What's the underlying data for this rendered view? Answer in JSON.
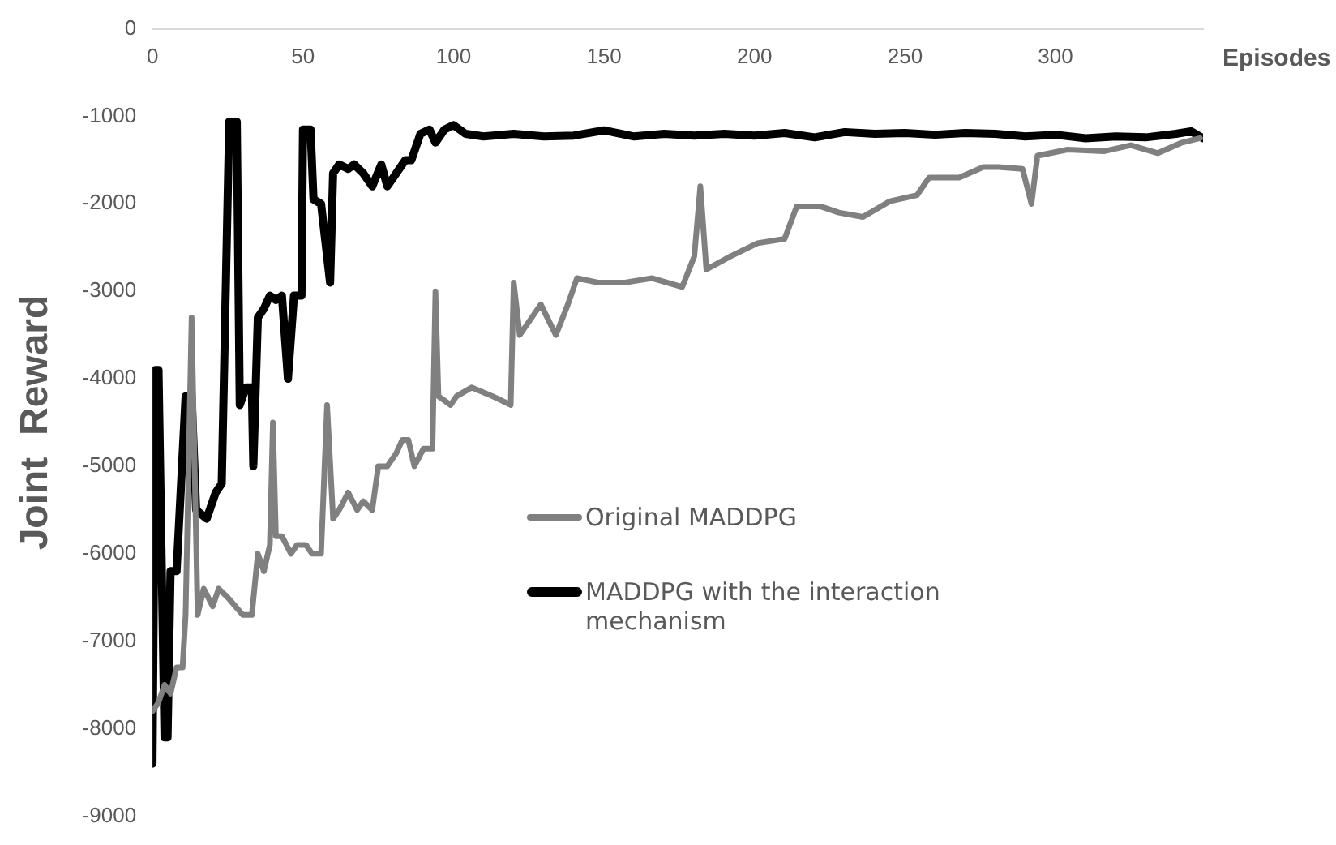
{
  "chart_data": {
    "type": "line",
    "xlabel": "Episodes",
    "ylabel": "Joint  Reward",
    "xlim": [
      0,
      349
    ],
    "xticks": [
      0,
      50,
      100,
      150,
      200,
      250,
      300
    ],
    "ylim": [
      -9000,
      0
    ],
    "yticks": [
      -9000,
      -8000,
      -7000,
      -6000,
      -5000,
      -4000,
      -3000,
      -2000,
      -1000,
      0
    ],
    "grid": false,
    "legend": "center",
    "marker": "none",
    "line_style": "solid",
    "series": [
      {
        "name": "Original MADDPG",
        "color": "#808080",
        "x": [
          0,
          2,
          4,
          6,
          8,
          10,
          11,
          13,
          15,
          17,
          20,
          22,
          25,
          30,
          33,
          35,
          37,
          39,
          40,
          41,
          43,
          46,
          48,
          51,
          53,
          56,
          58,
          60,
          62,
          65,
          68,
          70,
          73,
          75,
          78,
          81,
          83,
          85,
          87,
          90,
          93,
          94,
          95,
          99,
          101,
          106,
          113,
          119,
          120,
          122,
          129,
          134,
          138,
          141,
          148,
          157,
          166,
          176,
          180,
          182,
          184,
          192,
          201,
          210,
          214,
          222,
          228,
          236,
          245,
          254,
          258,
          268,
          276,
          281,
          289,
          292,
          294,
          304,
          316,
          325,
          334,
          342,
          348
        ],
        "values": [
          -7800,
          -7700,
          -7500,
          -7600,
          -7300,
          -7300,
          -6700,
          -3300,
          -6700,
          -6400,
          -6600,
          -6400,
          -6500,
          -6700,
          -6700,
          -6000,
          -6200,
          -5900,
          -4500,
          -5800,
          -5800,
          -6000,
          -5900,
          -5900,
          -6000,
          -6000,
          -4300,
          -5600,
          -5500,
          -5300,
          -5500,
          -5400,
          -5500,
          -5000,
          -5000,
          -4850,
          -4700,
          -4700,
          -5000,
          -4800,
          -4800,
          -3000,
          -4200,
          -4300,
          -4200,
          -4100,
          -4200,
          -4300,
          -2900,
          -3500,
          -3150,
          -3500,
          -3150,
          -2850,
          -2900,
          -2900,
          -2850,
          -2950,
          -2600,
          -1800,
          -2750,
          -2600,
          -2450,
          -2400,
          -2030,
          -2030,
          -2100,
          -2150,
          -1970,
          -1900,
          -1700,
          -1700,
          -1580,
          -1580,
          -1600,
          -2000,
          -1450,
          -1380,
          -1400,
          -1330,
          -1420,
          -1300,
          -1250
        ]
      },
      {
        "name": "MADDPG with the interaction mechanism",
        "color": "#000000",
        "x": [
          0,
          1,
          2,
          4,
          5,
          6,
          8,
          11,
          13,
          14.5,
          18,
          21,
          23,
          25.5,
          28,
          29,
          31,
          33,
          33.5,
          35,
          37,
          39,
          41,
          43,
          45,
          47,
          49.5,
          50,
          52.5,
          53.5,
          56,
          59,
          60,
          62,
          65,
          67,
          70,
          73,
          76,
          78,
          81,
          84,
          86,
          89,
          92,
          94,
          97,
          100,
          104,
          110,
          120,
          130,
          140,
          150,
          160,
          170,
          180,
          190,
          200,
          210,
          220,
          230,
          240,
          250,
          260,
          270,
          280,
          290,
          300,
          310,
          320,
          330,
          340,
          345,
          349
        ],
        "values": [
          -8400,
          -3900,
          -3900,
          -8100,
          -8100,
          -6200,
          -6200,
          -4200,
          -4200,
          -5500,
          -5600,
          -5300,
          -5200,
          -1060,
          -1060,
          -4300,
          -4100,
          -4100,
          -5000,
          -3300,
          -3200,
          -3050,
          -3100,
          -3050,
          -4000,
          -3050,
          -3050,
          -1150,
          -1150,
          -1950,
          -2000,
          -2900,
          -1650,
          -1550,
          -1600,
          -1550,
          -1650,
          -1800,
          -1550,
          -1800,
          -1650,
          -1500,
          -1500,
          -1200,
          -1150,
          -1300,
          -1150,
          -1100,
          -1200,
          -1230,
          -1200,
          -1230,
          -1220,
          -1160,
          -1230,
          -1200,
          -1220,
          -1200,
          -1220,
          -1190,
          -1240,
          -1180,
          -1200,
          -1190,
          -1210,
          -1190,
          -1200,
          -1230,
          -1210,
          -1250,
          -1230,
          -1240,
          -1200,
          -1170,
          -1250
        ]
      }
    ]
  }
}
